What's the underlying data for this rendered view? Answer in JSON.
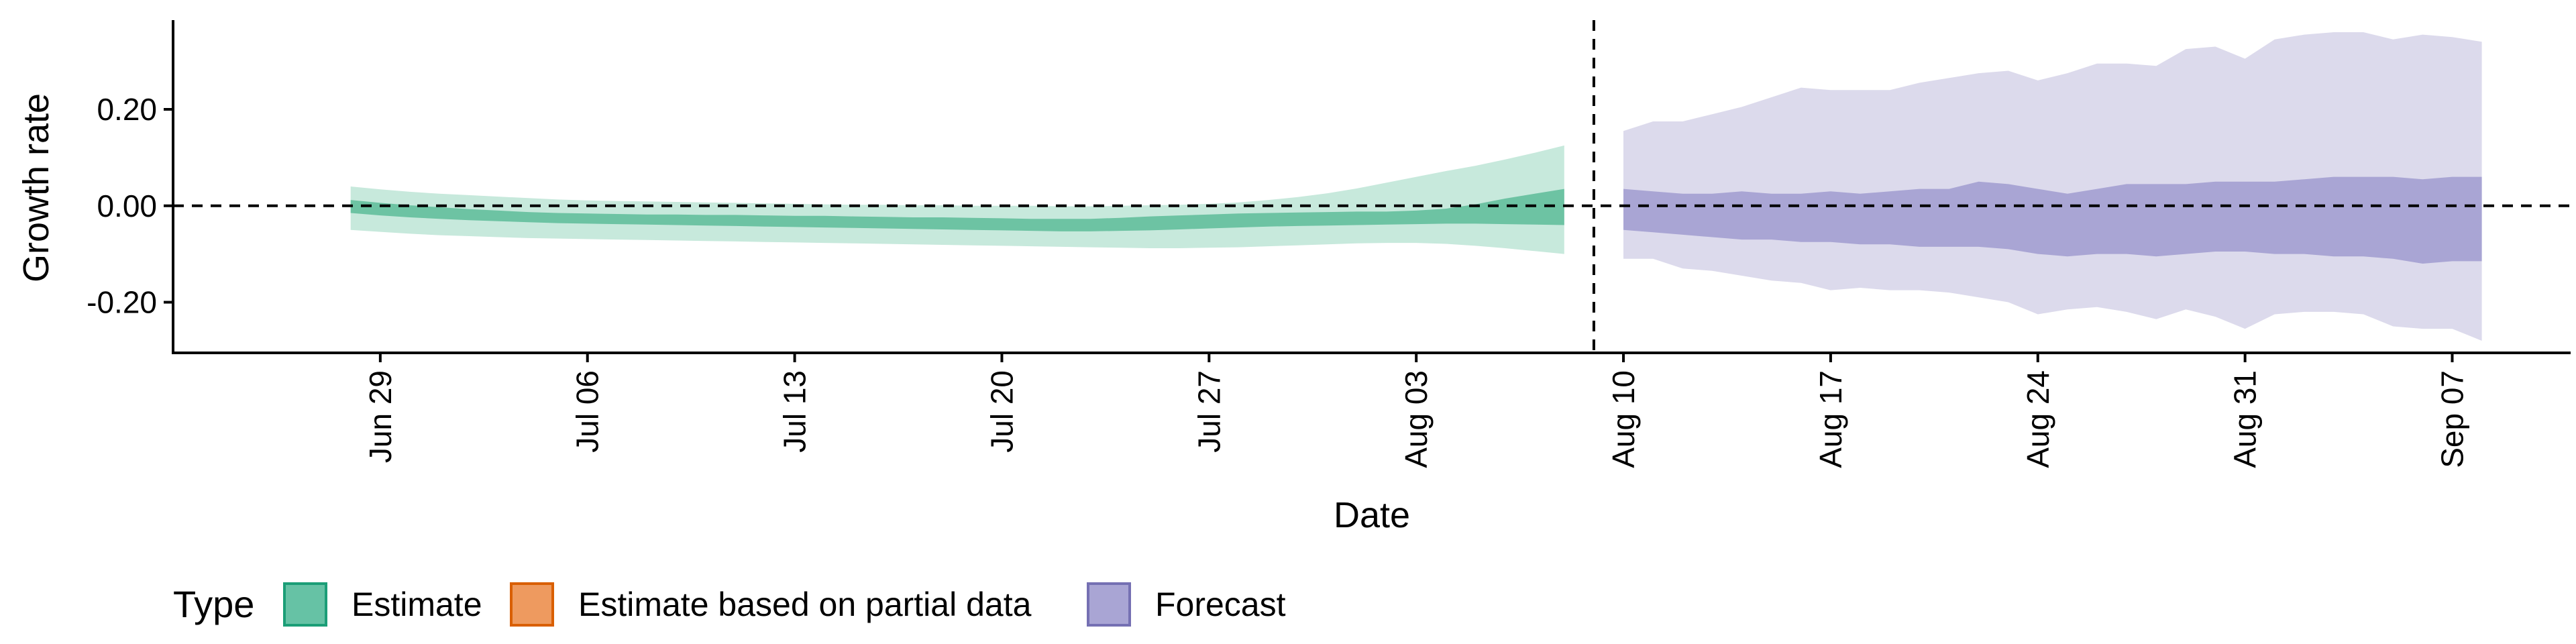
{
  "chart_data": {
    "type": "area",
    "xlabel": "Date",
    "ylabel": "Growth rate",
    "x_range": [
      "2020-06-22",
      "2020-09-11"
    ],
    "ylim": [
      -0.305,
      0.385
    ],
    "y_ticks": [
      -0.2,
      0.0,
      0.2
    ],
    "y_tick_labels": [
      "-0.20",
      "0.00",
      "0.20"
    ],
    "x_ticks": [
      "2020-06-29",
      "2020-07-06",
      "2020-07-13",
      "2020-07-20",
      "2020-07-27",
      "2020-08-03",
      "2020-08-10",
      "2020-08-17",
      "2020-08-24",
      "2020-08-31",
      "2020-09-07"
    ],
    "x_tick_labels": [
      "Jun 29",
      "Jul 06",
      "Jul 13",
      "Jul 20",
      "Jul 27",
      "Aug 03",
      "Aug 10",
      "Aug 17",
      "Aug 24",
      "Aug 31",
      "Sep 07"
    ],
    "reference_lines": {
      "horizontal_y": 0.0,
      "vertical_date": "2020-08-09"
    },
    "grid": false,
    "legend": {
      "title": "Type",
      "position": "bottom-left",
      "items": [
        {
          "label": "Estimate",
          "color": "#66c2a5",
          "border": "#1b9e77"
        },
        {
          "label": "Estimate based on partial data",
          "color": "#ee9a5f",
          "border": "#d95f02"
        },
        {
          "label": "Forecast",
          "color": "#a9a5d4",
          "border": "#7570b3"
        }
      ]
    },
    "series": [
      {
        "name": "Estimate",
        "color_inner": "#6dc3a3",
        "color_outer": "#c7e9dc",
        "x": [
          "2020-06-28",
          "2020-06-29",
          "2020-06-30",
          "2020-07-01",
          "2020-07-02",
          "2020-07-03",
          "2020-07-04",
          "2020-07-05",
          "2020-07-06",
          "2020-07-07",
          "2020-07-08",
          "2020-07-09",
          "2020-07-10",
          "2020-07-11",
          "2020-07-12",
          "2020-07-13",
          "2020-07-14",
          "2020-07-15",
          "2020-07-16",
          "2020-07-17",
          "2020-07-18",
          "2020-07-19",
          "2020-07-20",
          "2020-07-21",
          "2020-07-22",
          "2020-07-23",
          "2020-07-24",
          "2020-07-25",
          "2020-07-26",
          "2020-07-27",
          "2020-07-28",
          "2020-07-29",
          "2020-07-30",
          "2020-07-31",
          "2020-08-01",
          "2020-08-02",
          "2020-08-03",
          "2020-08-04",
          "2020-08-05",
          "2020-08-06",
          "2020-08-07",
          "2020-08-08"
        ],
        "outer_upper": [
          0.04,
          0.034,
          0.029,
          0.025,
          0.022,
          0.019,
          0.016,
          0.013,
          0.011,
          0.01,
          0.009,
          0.008,
          0.007,
          0.006,
          0.005,
          0.004,
          0.003,
          0.002,
          0.002,
          0.001,
          0.001,
          0.0,
          0.0,
          0.0,
          -0.001,
          -0.001,
          0.0,
          0.001,
          0.002,
          0.004,
          0.007,
          0.012,
          0.018,
          0.026,
          0.036,
          0.048,
          0.06,
          0.072,
          0.083,
          0.096,
          0.11,
          0.125
        ],
        "outer_lower": [
          -0.05,
          -0.054,
          -0.058,
          -0.061,
          -0.063,
          -0.065,
          -0.067,
          -0.068,
          -0.069,
          -0.07,
          -0.071,
          -0.072,
          -0.073,
          -0.074,
          -0.075,
          -0.076,
          -0.077,
          -0.078,
          -0.079,
          -0.08,
          -0.081,
          -0.082,
          -0.083,
          -0.084,
          -0.085,
          -0.086,
          -0.087,
          -0.088,
          -0.088,
          -0.087,
          -0.086,
          -0.084,
          -0.082,
          -0.08,
          -0.078,
          -0.077,
          -0.077,
          -0.079,
          -0.083,
          -0.088,
          -0.094,
          -0.1
        ],
        "inner_upper": [
          0.012,
          0.006,
          0.001,
          -0.003,
          -0.007,
          -0.01,
          -0.013,
          -0.015,
          -0.016,
          -0.017,
          -0.018,
          -0.018,
          -0.019,
          -0.019,
          -0.02,
          -0.021,
          -0.021,
          -0.022,
          -0.023,
          -0.024,
          -0.024,
          -0.025,
          -0.026,
          -0.027,
          -0.027,
          -0.027,
          -0.025,
          -0.022,
          -0.02,
          -0.018,
          -0.016,
          -0.015,
          -0.014,
          -0.013,
          -0.012,
          -0.012,
          -0.01,
          -0.006,
          0.003,
          0.015,
          0.025,
          0.035
        ],
        "inner_lower": [
          -0.015,
          -0.02,
          -0.024,
          -0.027,
          -0.03,
          -0.032,
          -0.034,
          -0.036,
          -0.037,
          -0.038,
          -0.039,
          -0.04,
          -0.041,
          -0.042,
          -0.043,
          -0.044,
          -0.045,
          -0.046,
          -0.047,
          -0.048,
          -0.049,
          -0.05,
          -0.051,
          -0.052,
          -0.053,
          -0.053,
          -0.052,
          -0.051,
          -0.049,
          -0.047,
          -0.045,
          -0.043,
          -0.042,
          -0.041,
          -0.04,
          -0.039,
          -0.038,
          -0.037,
          -0.037,
          -0.038,
          -0.039,
          -0.04
        ]
      },
      {
        "name": "Forecast",
        "color_inner": "#a9a5d4",
        "color_outer": "#dcdaec",
        "x": [
          "2020-08-10",
          "2020-08-11",
          "2020-08-12",
          "2020-08-13",
          "2020-08-14",
          "2020-08-15",
          "2020-08-16",
          "2020-08-17",
          "2020-08-18",
          "2020-08-19",
          "2020-08-20",
          "2020-08-21",
          "2020-08-22",
          "2020-08-23",
          "2020-08-24",
          "2020-08-25",
          "2020-08-26",
          "2020-08-27",
          "2020-08-28",
          "2020-08-29",
          "2020-08-30",
          "2020-08-31",
          "2020-09-01",
          "2020-09-02",
          "2020-09-03",
          "2020-09-04",
          "2020-09-05",
          "2020-09-06",
          "2020-09-07",
          "2020-09-08"
        ],
        "outer_upper": [
          0.155,
          0.175,
          0.175,
          0.19,
          0.205,
          0.225,
          0.245,
          0.24,
          0.24,
          0.24,
          0.255,
          0.265,
          0.275,
          0.28,
          0.26,
          0.275,
          0.295,
          0.295,
          0.29,
          0.325,
          0.33,
          0.305,
          0.345,
          0.355,
          0.36,
          0.36,
          0.345,
          0.355,
          0.35,
          0.34
        ],
        "outer_lower": [
          -0.11,
          -0.11,
          -0.13,
          -0.135,
          -0.145,
          -0.155,
          -0.16,
          -0.175,
          -0.17,
          -0.175,
          -0.175,
          -0.18,
          -0.19,
          -0.2,
          -0.225,
          -0.215,
          -0.21,
          -0.22,
          -0.235,
          -0.215,
          -0.23,
          -0.255,
          -0.225,
          -0.22,
          -0.22,
          -0.225,
          -0.25,
          -0.255,
          -0.255,
          -0.28
        ],
        "inner_upper": [
          0.035,
          0.03,
          0.025,
          0.025,
          0.03,
          0.025,
          0.025,
          0.03,
          0.025,
          0.03,
          0.035,
          0.035,
          0.05,
          0.045,
          0.035,
          0.025,
          0.035,
          0.045,
          0.045,
          0.045,
          0.05,
          0.05,
          0.05,
          0.055,
          0.06,
          0.06,
          0.06,
          0.055,
          0.06,
          0.06
        ],
        "inner_lower": [
          -0.05,
          -0.055,
          -0.06,
          -0.065,
          -0.07,
          -0.07,
          -0.075,
          -0.075,
          -0.08,
          -0.08,
          -0.085,
          -0.085,
          -0.085,
          -0.09,
          -0.1,
          -0.105,
          -0.1,
          -0.1,
          -0.105,
          -0.1,
          -0.095,
          -0.095,
          -0.1,
          -0.1,
          -0.105,
          -0.105,
          -0.11,
          -0.12,
          -0.115,
          -0.115
        ]
      }
    ]
  }
}
